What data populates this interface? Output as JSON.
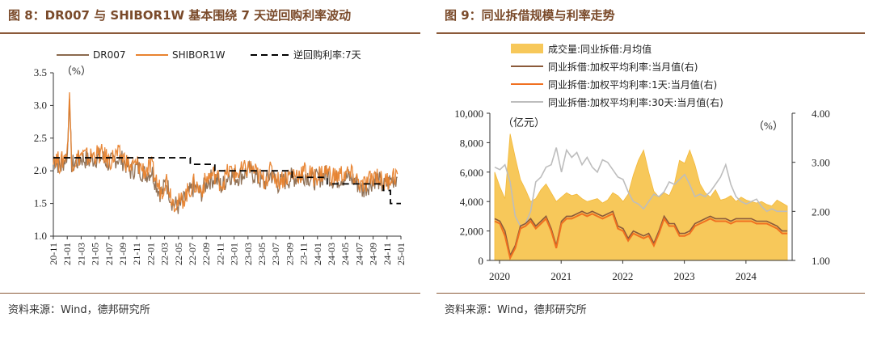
{
  "left": {
    "title": "图 8：DR007 与 SHIBOR1W 基本围绕 7 天逆回购利率波动",
    "source": "资料来源：Wind，德邦研究所",
    "chart_data": {
      "type": "line",
      "unit_label": "（%）",
      "ylim": [
        1.0,
        3.5
      ],
      "yticks": [
        1.0,
        1.5,
        2.0,
        2.5,
        3.0,
        3.5
      ],
      "xticks": [
        "20-11",
        "21-01",
        "21-03",
        "21-05",
        "21-07",
        "21-09",
        "21-11",
        "22-01",
        "22-03",
        "22-05",
        "22-07",
        "22-09",
        "22-11",
        "23-01",
        "23-03",
        "23-05",
        "23-07",
        "23-09",
        "23-11",
        "24-01",
        "24-03",
        "24-05",
        "24-07",
        "24-09",
        "24-11",
        "25-01"
      ],
      "series": [
        {
          "name": "DR007",
          "color": "#8B6A4E",
          "anchors": [
            [
              0,
              2.2
            ],
            [
              1,
              2.05
            ],
            [
              2,
              2.25
            ],
            [
              2.3,
              3.1
            ],
            [
              2.6,
              2.1
            ],
            [
              3,
              2.1
            ],
            [
              4,
              2.2
            ],
            [
              5,
              2.15
            ],
            [
              6,
              2.2
            ],
            [
              7,
              2.2
            ],
            [
              8,
              2.1
            ],
            [
              9,
              2.2
            ],
            [
              10,
              2.15
            ],
            [
              11,
              2.0
            ],
            [
              12,
              2.05
            ],
            [
              13,
              1.95
            ],
            [
              14,
              2.0
            ],
            [
              15,
              1.7
            ],
            [
              15.5,
              1.65
            ],
            [
              16,
              1.85
            ],
            [
              17,
              1.5
            ],
            [
              18,
              1.45
            ],
            [
              19,
              1.6
            ],
            [
              20,
              1.75
            ],
            [
              21,
              1.65
            ],
            [
              22,
              1.85
            ],
            [
              23,
              1.9
            ],
            [
              24,
              1.75
            ],
            [
              25,
              1.95
            ],
            [
              26,
              1.9
            ],
            [
              27,
              1.95
            ],
            [
              28,
              2.0
            ],
            [
              29,
              1.9
            ],
            [
              30,
              1.8
            ],
            [
              31,
              1.95
            ],
            [
              32,
              1.8
            ],
            [
              33,
              1.85
            ],
            [
              34,
              1.9
            ],
            [
              35,
              1.9
            ],
            [
              36,
              1.95
            ],
            [
              37,
              1.85
            ],
            [
              38,
              1.9
            ],
            [
              39,
              1.95
            ],
            [
              40,
              1.85
            ],
            [
              41,
              1.9
            ],
            [
              42,
              1.9
            ],
            [
              43,
              1.85
            ],
            [
              44,
              1.7
            ],
            [
              45,
              1.8
            ],
            [
              46,
              1.9
            ],
            [
              47,
              1.75
            ],
            [
              48,
              1.85
            ],
            [
              49,
              1.9
            ]
          ]
        },
        {
          "name": "SHIBOR1W",
          "color": "#E8832F",
          "anchors": [
            [
              0,
              2.25
            ],
            [
              1,
              2.1
            ],
            [
              2,
              2.3
            ],
            [
              2.3,
              3.2
            ],
            [
              2.6,
              2.15
            ],
            [
              3,
              2.15
            ],
            [
              4,
              2.25
            ],
            [
              5,
              2.2
            ],
            [
              6,
              2.25
            ],
            [
              7,
              2.25
            ],
            [
              8,
              2.15
            ],
            [
              9,
              2.25
            ],
            [
              10,
              2.2
            ],
            [
              11,
              2.05
            ],
            [
              12,
              2.1
            ],
            [
              13,
              2.0
            ],
            [
              14,
              2.05
            ],
            [
              15,
              1.75
            ],
            [
              15.5,
              1.7
            ],
            [
              16,
              1.9
            ],
            [
              17,
              1.55
            ],
            [
              18,
              1.5
            ],
            [
              19,
              1.65
            ],
            [
              20,
              1.8
            ],
            [
              21,
              1.7
            ],
            [
              22,
              1.9
            ],
            [
              23,
              1.95
            ],
            [
              24,
              1.8
            ],
            [
              25,
              2.0
            ],
            [
              26,
              1.95
            ],
            [
              27,
              2.0
            ],
            [
              28,
              2.05
            ],
            [
              29,
              1.95
            ],
            [
              30,
              1.85
            ],
            [
              31,
              2.0
            ],
            [
              32,
              1.85
            ],
            [
              33,
              1.9
            ],
            [
              34,
              1.95
            ],
            [
              35,
              1.95
            ],
            [
              36,
              2.0
            ],
            [
              37,
              1.9
            ],
            [
              38,
              1.95
            ],
            [
              39,
              2.0
            ],
            [
              40,
              1.9
            ],
            [
              41,
              1.95
            ],
            [
              42,
              1.95
            ],
            [
              43,
              1.9
            ],
            [
              44,
              1.75
            ],
            [
              45,
              1.85
            ],
            [
              46,
              1.95
            ],
            [
              47,
              1.8
            ],
            [
              48,
              1.9
            ],
            [
              49,
              1.95
            ]
          ]
        },
        {
          "name": "逆回购利率:7天",
          "color": "#000000",
          "dashed": true,
          "steps": [
            [
              0,
              2.2
            ],
            [
              19.5,
              2.1
            ],
            [
              23,
              2.0
            ],
            [
              34,
              1.9
            ],
            [
              39,
              1.8
            ],
            [
              47,
              1.7
            ],
            [
              48,
              1.5
            ],
            [
              49.5,
              1.5
            ]
          ]
        }
      ]
    }
  },
  "right": {
    "title": "图 9：同业拆借规模与利率走势",
    "source": "资料来源：Wind，德邦研究所",
    "chart_data": {
      "type": "area+line",
      "left_unit": "（亿元）",
      "right_unit": "（%）",
      "ylim_left": [
        0,
        10000
      ],
      "ylim_right": [
        1.0,
        4.0
      ],
      "yticks_left": [
        "0",
        "2,000",
        "4,000",
        "6,000",
        "8,000",
        "10,000"
      ],
      "yticks_right": [
        "1.00",
        "2.00",
        "3.00",
        "4.00"
      ],
      "xticks": [
        "2020",
        "2021",
        "2022",
        "2023",
        "2024"
      ],
      "series": [
        {
          "name": "成交量:同业拆借:月均值",
          "axis": "left",
          "color": "#F7C85A",
          "values": [
            6000,
            5000,
            4200,
            8600,
            7000,
            5500,
            4800,
            4000,
            4200,
            4800,
            5200,
            4600,
            4000,
            4300,
            4600,
            4400,
            4500,
            4200,
            4000,
            4100,
            4200,
            3900,
            4100,
            4600,
            4400,
            4000,
            4500,
            5800,
            6800,
            7500,
            6000,
            4700,
            4300,
            4600,
            4400,
            5200,
            6800,
            6600,
            7500,
            6500,
            5200,
            4600,
            4300,
            4800,
            4100,
            4200,
            4400,
            4000,
            4300,
            4100,
            4000,
            3900,
            4000,
            3800,
            3700,
            4100,
            3900,
            3700
          ]
        },
        {
          "name": "同业拆借:加权平均利率:当月值(右)",
          "axis": "right",
          "color": "#8B5A3A",
          "values": [
            1.85,
            1.8,
            1.6,
            1.1,
            1.3,
            1.7,
            1.75,
            1.85,
            1.7,
            1.8,
            1.9,
            1.65,
            1.3,
            1.8,
            1.9,
            1.9,
            1.95,
            2.0,
            1.95,
            2.0,
            1.95,
            1.9,
            1.95,
            2.0,
            1.7,
            1.65,
            1.45,
            1.6,
            1.55,
            1.5,
            1.55,
            1.35,
            1.6,
            1.9,
            1.75,
            1.75,
            1.55,
            1.55,
            1.6,
            1.75,
            1.8,
            1.85,
            1.9,
            1.85,
            1.85,
            1.85,
            1.8,
            1.85,
            1.85,
            1.85,
            1.85,
            1.8,
            1.8,
            1.8,
            1.75,
            1.7,
            1.6,
            1.6
          ]
        },
        {
          "name": "同业拆借:加权平均利率:1天:当月值(右)",
          "axis": "right",
          "color": "#F07020",
          "values": [
            1.8,
            1.75,
            1.5,
            1.05,
            1.25,
            1.65,
            1.7,
            1.8,
            1.65,
            1.75,
            1.85,
            1.6,
            1.25,
            1.75,
            1.85,
            1.85,
            1.9,
            1.95,
            1.9,
            1.95,
            1.9,
            1.85,
            1.9,
            1.95,
            1.65,
            1.6,
            1.4,
            1.55,
            1.5,
            1.45,
            1.5,
            1.3,
            1.55,
            1.85,
            1.7,
            1.7,
            1.5,
            1.5,
            1.55,
            1.7,
            1.75,
            1.8,
            1.85,
            1.8,
            1.8,
            1.8,
            1.75,
            1.8,
            1.8,
            1.8,
            1.8,
            1.75,
            1.75,
            1.75,
            1.7,
            1.65,
            1.55,
            1.55
          ]
        },
        {
          "name": "同业拆借:加权平均利率:30天:当月值(右)",
          "axis": "right",
          "color": "#BDBDBD",
          "values": [
            2.9,
            2.85,
            2.95,
            2.6,
            1.9,
            1.7,
            1.75,
            2.0,
            2.6,
            2.7,
            2.9,
            2.95,
            3.3,
            2.8,
            3.25,
            3.1,
            3.2,
            2.95,
            3.1,
            2.9,
            2.8,
            3.05,
            3.0,
            2.85,
            2.7,
            2.65,
            2.4,
            2.2,
            2.15,
            2.05,
            2.2,
            2.35,
            2.3,
            2.4,
            2.6,
            2.55,
            2.65,
            2.75,
            2.55,
            2.3,
            2.35,
            2.3,
            2.4,
            2.55,
            2.7,
            2.95,
            2.55,
            2.3,
            2.2,
            2.15,
            2.2,
            2.25,
            2.1,
            2.0,
            2.05,
            2.0,
            2.0,
            2.0
          ]
        }
      ]
    }
  }
}
